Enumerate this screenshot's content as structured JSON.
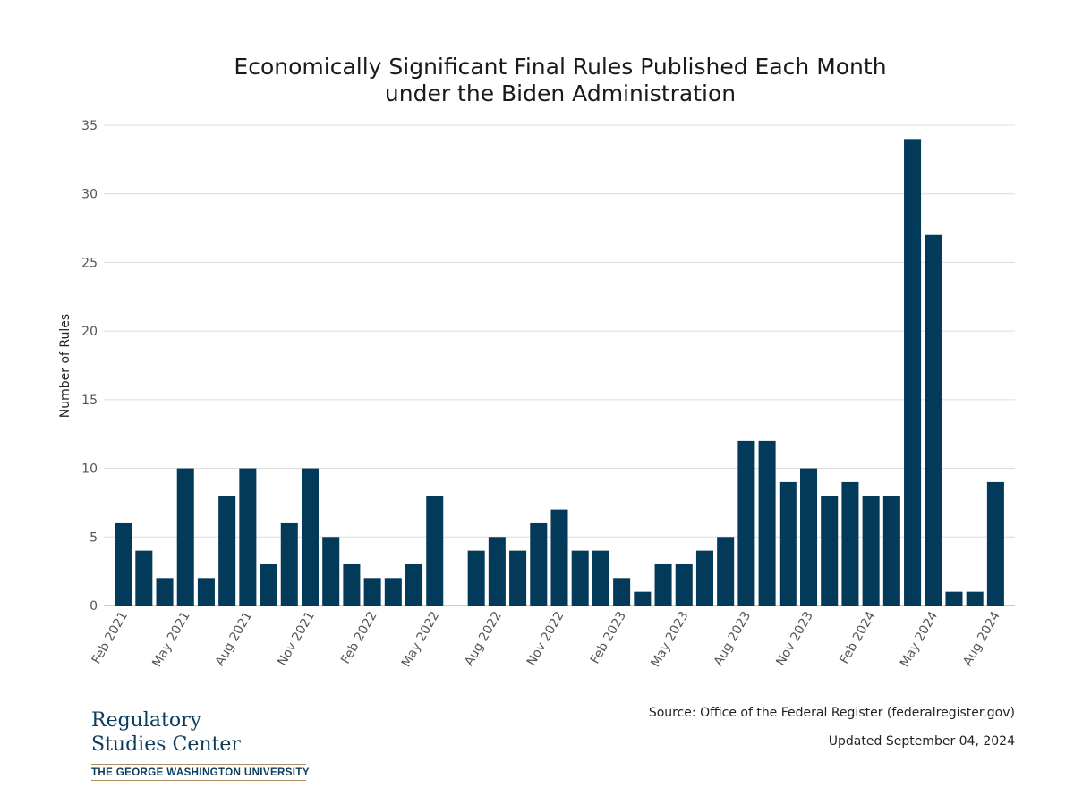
{
  "colors": {
    "bar": "#033a59",
    "grid": "#dcdcdc",
    "axis": "#cccccc",
    "logo_text": "#0b3d5c",
    "logo_rule": "#b08c5a"
  },
  "chart_data": {
    "type": "bar",
    "title_lines": [
      "Economically Significant Final Rules Published Each Month",
      "under the Biden Administration"
    ],
    "xlabel": "",
    "ylabel": "Number of Rules",
    "ylim": [
      0,
      35
    ],
    "yticks": [
      0,
      5,
      10,
      15,
      20,
      25,
      30,
      35
    ],
    "grid": true,
    "categories": [
      "Feb 2021",
      "Mar 2021",
      "Apr 2021",
      "May 2021",
      "Jun 2021",
      "Jul 2021",
      "Aug 2021",
      "Sep 2021",
      "Oct 2021",
      "Nov 2021",
      "Dec 2021",
      "Jan 2022",
      "Feb 2022",
      "Mar 2022",
      "Apr 2022",
      "May 2022",
      "Jun 2022",
      "Jul 2022",
      "Aug 2022",
      "Sep 2022",
      "Oct 2022",
      "Nov 2022",
      "Dec 2022",
      "Jan 2023",
      "Feb 2023",
      "Mar 2023",
      "Apr 2023",
      "May 2023",
      "Jun 2023",
      "Jul 2023",
      "Aug 2023",
      "Sep 2023",
      "Oct 2023",
      "Nov 2023",
      "Dec 2023",
      "Jan 2024",
      "Feb 2024",
      "Mar 2024",
      "Apr 2024",
      "May 2024",
      "Jun 2024",
      "Jul 2024",
      "Aug 2024"
    ],
    "values": [
      6,
      4,
      2,
      10,
      2,
      8,
      10,
      3,
      6,
      10,
      5,
      3,
      2,
      2,
      3,
      8,
      0,
      4,
      5,
      4,
      6,
      7,
      4,
      4,
      2,
      1,
      3,
      3,
      4,
      5,
      12,
      12,
      9,
      10,
      8,
      9,
      8,
      8,
      34,
      27,
      1,
      1,
      9
    ],
    "xtick_labels": [
      "Feb 2021",
      "May 2021",
      "Aug 2021",
      "Nov 2021",
      "Feb 2022",
      "May 2022",
      "Aug 2022",
      "Nov 2022",
      "Feb 2023",
      "May 2023",
      "Aug 2023",
      "Nov 2023",
      "Feb 2024",
      "May 2024",
      "Aug 2024"
    ]
  },
  "footer": {
    "source": "Source: Office of the Federal Register (federalregister.gov)",
    "updated": "Updated September 04, 2024"
  },
  "logo": {
    "line1": "Regulatory",
    "line2": "Studies Center",
    "subtitle": "THE GEORGE WASHINGTON UNIVERSITY"
  }
}
